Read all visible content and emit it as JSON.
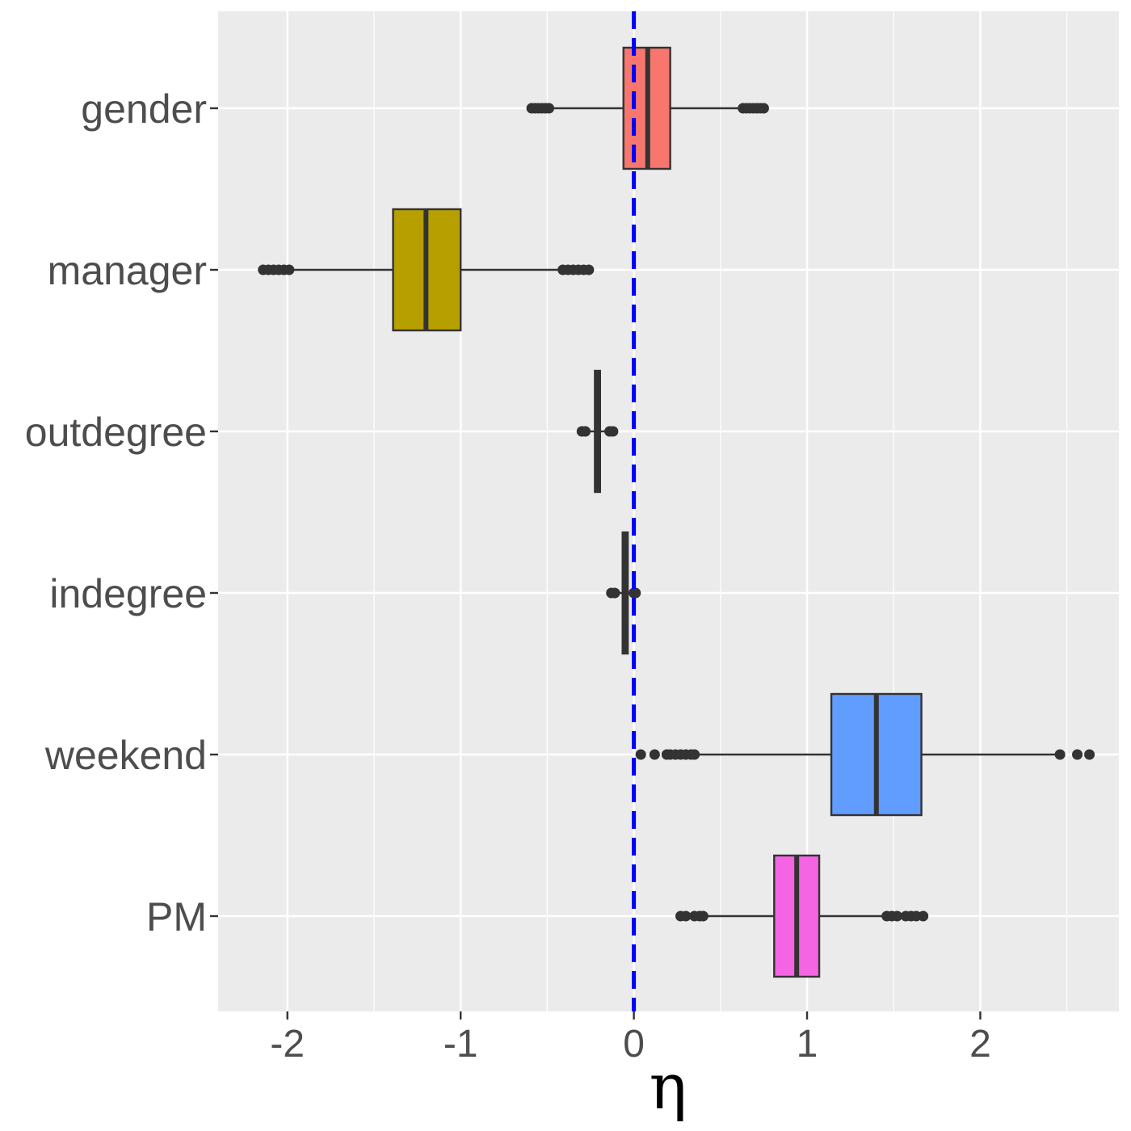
{
  "chart_data": {
    "type": "boxplot",
    "orientation": "horizontal",
    "title": "",
    "xlabel": "η",
    "ylabel": "",
    "xlim": [
      -2.4,
      2.8
    ],
    "x_ticks": [
      -2,
      -1,
      0,
      1,
      2
    ],
    "x_tick_labels": [
      "-2",
      "-1",
      "0",
      "1",
      "2"
    ],
    "x_minor_ticks": [
      -1.5,
      -0.5,
      0.5,
      1.5,
      2.5
    ],
    "grid": true,
    "reference_line": {
      "x": 0,
      "color": "#0000ff",
      "style": "dashed"
    },
    "categories": [
      "gender",
      "manager",
      "outdegree",
      "indegree",
      "weekend",
      "PM"
    ],
    "boxes": [
      {
        "label": "gender",
        "color": "#F8766D",
        "q1": -0.06,
        "median": 0.08,
        "q3": 0.21,
        "whisker_low": -0.48,
        "whisker_high": 0.62,
        "outliers": [
          -0.59,
          -0.57,
          -0.55,
          -0.53,
          -0.51,
          -0.49,
          0.63,
          0.65,
          0.67,
          0.69,
          0.71,
          0.73,
          0.75
        ]
      },
      {
        "label": "manager",
        "color": "#B79F00",
        "q1": -1.39,
        "median": -1.2,
        "q3": -1.0,
        "whisker_low": -1.98,
        "whisker_high": -0.43,
        "outliers": [
          -2.14,
          -2.11,
          -2.08,
          -2.05,
          -2.02,
          -1.99,
          -0.41,
          -0.38,
          -0.35,
          -0.32,
          -0.29,
          -0.26
        ]
      },
      {
        "label": "outdegree",
        "color": "#00BA38",
        "q1": -0.225,
        "median": -0.21,
        "q3": -0.195,
        "whisker_low": -0.28,
        "whisker_high": -0.14,
        "outliers": [
          -0.3,
          -0.28,
          -0.14,
          -0.12
        ]
      },
      {
        "label": "indegree",
        "color": "#00BFC4",
        "q1": -0.065,
        "median": -0.05,
        "q3": -0.035,
        "whisker_low": -0.12,
        "whisker_high": 0.0,
        "outliers": [
          -0.13,
          -0.11,
          0.0,
          0.01
        ]
      },
      {
        "label": "weekend",
        "color": "#619CFF",
        "q1": 1.14,
        "median": 1.4,
        "q3": 1.66,
        "whisker_low": 0.36,
        "whisker_high": 2.45,
        "outliers": [
          0.04,
          0.12,
          0.19,
          0.21,
          0.24,
          0.27,
          0.3,
          0.33,
          0.35,
          2.46,
          2.56,
          2.63
        ]
      },
      {
        "label": "PM",
        "color": "#F564E3",
        "q1": 0.81,
        "median": 0.94,
        "q3": 1.07,
        "whisker_low": 0.4,
        "whisker_high": 1.46,
        "outliers": [
          0.27,
          0.3,
          0.35,
          0.38,
          0.4,
          1.46,
          1.49,
          1.52,
          1.57,
          1.6,
          1.63,
          1.67
        ]
      }
    ]
  }
}
